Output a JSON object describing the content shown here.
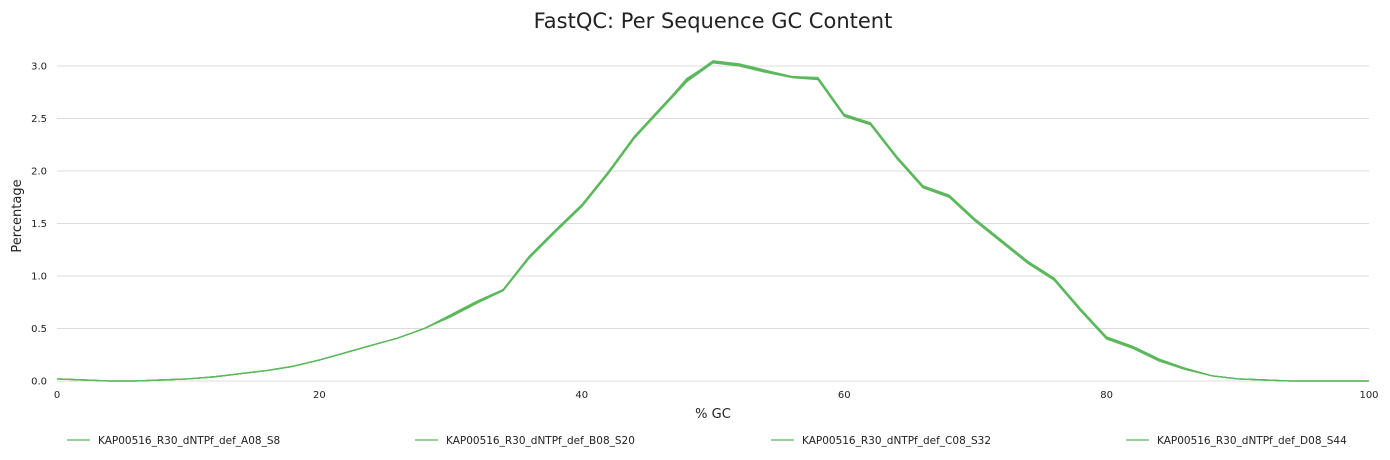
{
  "chart_data": {
    "type": "line",
    "title": "FastQC: Per Sequence GC Content",
    "xlabel": "% GC",
    "ylabel": "Percentage",
    "xlim": [
      0,
      100
    ],
    "ylim": [
      0,
      3.2
    ],
    "x_ticks": [
      "0",
      "20",
      "40",
      "60",
      "80",
      "100"
    ],
    "y_ticks": [
      "0.0",
      "0.5",
      "1.0",
      "1.5",
      "2.0",
      "2.5",
      "3.0"
    ],
    "grid": true,
    "legend_position": "bottom",
    "series_color": "#5cb85c",
    "x": [
      0,
      2,
      4,
      6,
      8,
      10,
      12,
      14,
      16,
      18,
      20,
      22,
      24,
      26,
      28,
      30,
      32,
      34,
      36,
      38,
      40,
      42,
      44,
      46,
      48,
      50,
      52,
      54,
      56,
      58,
      60,
      62,
      64,
      66,
      68,
      70,
      72,
      74,
      76,
      78,
      80,
      82,
      84,
      86,
      88,
      90,
      92,
      94,
      96,
      98,
      100
    ],
    "series": [
      {
        "name": "KAP00516_R30_dNTPf_def_A08_S8",
        "values": [
          0.02,
          0.01,
          0.0,
          0.0,
          0.01,
          0.02,
          0.04,
          0.07,
          0.1,
          0.14,
          0.2,
          0.27,
          0.34,
          0.41,
          0.5,
          0.62,
          0.75,
          0.86,
          1.18,
          1.43,
          1.67,
          1.98,
          2.32,
          2.59,
          2.88,
          3.04,
          3.01,
          2.95,
          2.9,
          2.88,
          2.53,
          2.45,
          2.13,
          1.85,
          1.76,
          1.53,
          1.33,
          1.13,
          0.97,
          0.68,
          0.41,
          0.32,
          0.2,
          0.12,
          0.05,
          0.02,
          0.01,
          0.0,
          0.0,
          0.0,
          0.0
        ]
      },
      {
        "name": "KAP00516_R30_dNTPf_def_B08_S20",
        "values": [
          0.02,
          0.01,
          0.0,
          0.0,
          0.01,
          0.02,
          0.04,
          0.07,
          0.1,
          0.14,
          0.2,
          0.27,
          0.34,
          0.41,
          0.5,
          0.63,
          0.76,
          0.87,
          1.19,
          1.44,
          1.68,
          1.99,
          2.33,
          2.6,
          2.87,
          3.05,
          3.02,
          2.96,
          2.9,
          2.89,
          2.54,
          2.46,
          2.14,
          1.86,
          1.77,
          1.54,
          1.34,
          1.14,
          0.98,
          0.69,
          0.42,
          0.33,
          0.21,
          0.12,
          0.05,
          0.02,
          0.01,
          0.0,
          0.0,
          0.0,
          0.0
        ]
      },
      {
        "name": "KAP00516_R30_dNTPf_def_C08_S32",
        "values": [
          0.02,
          0.01,
          0.0,
          0.0,
          0.01,
          0.02,
          0.04,
          0.07,
          0.1,
          0.14,
          0.2,
          0.27,
          0.34,
          0.41,
          0.5,
          0.61,
          0.74,
          0.86,
          1.17,
          1.42,
          1.66,
          1.97,
          2.31,
          2.58,
          2.85,
          3.03,
          3.0,
          2.94,
          2.89,
          2.87,
          2.52,
          2.44,
          2.12,
          1.84,
          1.75,
          1.52,
          1.32,
          1.12,
          0.96,
          0.67,
          0.4,
          0.31,
          0.19,
          0.11,
          0.05,
          0.02,
          0.01,
          0.0,
          0.0,
          0.0,
          0.0
        ]
      },
      {
        "name": "KAP00516_R30_dNTPf_def_D08_S44",
        "values": [
          0.02,
          0.01,
          0.0,
          0.0,
          0.01,
          0.02,
          0.04,
          0.07,
          0.1,
          0.14,
          0.2,
          0.27,
          0.34,
          0.41,
          0.5,
          0.62,
          0.75,
          0.87,
          1.18,
          1.43,
          1.67,
          1.98,
          2.32,
          2.6,
          2.86,
          3.04,
          3.01,
          2.95,
          2.9,
          2.88,
          2.53,
          2.45,
          2.13,
          1.85,
          1.76,
          1.53,
          1.33,
          1.13,
          0.97,
          0.68,
          0.41,
          0.32,
          0.2,
          0.12,
          0.05,
          0.02,
          0.01,
          0.0,
          0.0,
          0.0,
          0.0
        ]
      }
    ]
  }
}
